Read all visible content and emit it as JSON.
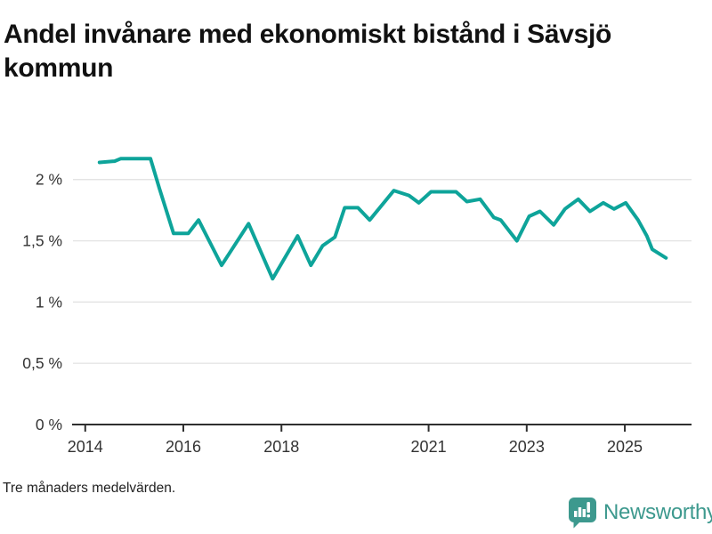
{
  "title": "Andel invånare med ekonomiskt bistånd i Sävsjö kommun",
  "footnote": "Tre månaders medelvärden.",
  "branding": {
    "name": "Newsworthy",
    "icon": "newsworthy-speech-bubble-chart-icon",
    "color": "#3d998e"
  },
  "colors": {
    "line": "#0ea49a",
    "grid": "#e4e4e4",
    "axis": "#2f2f2f",
    "tick_text": "#333333",
    "title_text": "#111111",
    "background": "#ffffff"
  },
  "chart_data": {
    "type": "line",
    "title": "Andel invånare med ekonomiskt bistånd i Sävsjö kommun",
    "subtitle": "Tre månaders medelvärden.",
    "xlabel": "",
    "ylabel": "",
    "unit": "%",
    "decimal_separator": ",",
    "grid": "horizontal",
    "legend": "none",
    "xlim": [
      2013.75,
      2026.36
    ],
    "ylim": [
      0,
      2.267
    ],
    "x_ticks": [
      {
        "value": 2014,
        "label": "2014"
      },
      {
        "value": 2016,
        "label": "2016"
      },
      {
        "value": 2018,
        "label": "2018"
      },
      {
        "value": 2021,
        "label": "2021"
      },
      {
        "value": 2023,
        "label": "2023"
      },
      {
        "value": 2025,
        "label": "2025"
      }
    ],
    "y_ticks": [
      {
        "value": 0,
        "label": "0 %"
      },
      {
        "value": 0.5,
        "label": "0,5 %"
      },
      {
        "value": 1,
        "label": "1 %"
      },
      {
        "value": 1.5,
        "label": "1,5 %"
      },
      {
        "value": 2,
        "label": "2 %"
      }
    ],
    "series": [
      {
        "name": "Sävsjö kommun",
        "color": "#0ea49a",
        "points": [
          [
            2014.29,
            2.14
          ],
          [
            2014.6,
            2.15
          ],
          [
            2014.72,
            2.17
          ],
          [
            2015.33,
            2.17
          ],
          [
            2015.51,
            1.93
          ],
          [
            2015.8,
            1.56
          ],
          [
            2016.1,
            1.56
          ],
          [
            2016.31,
            1.67
          ],
          [
            2016.78,
            1.3
          ],
          [
            2017.33,
            1.64
          ],
          [
            2017.82,
            1.19
          ],
          [
            2018.33,
            1.54
          ],
          [
            2018.6,
            1.3
          ],
          [
            2018.84,
            1.46
          ],
          [
            2019.09,
            1.53
          ],
          [
            2019.29,
            1.77
          ],
          [
            2019.56,
            1.77
          ],
          [
            2019.8,
            1.67
          ],
          [
            2020.29,
            1.91
          ],
          [
            2020.6,
            1.87
          ],
          [
            2020.8,
            1.81
          ],
          [
            2021.05,
            1.9
          ],
          [
            2021.56,
            1.9
          ],
          [
            2021.78,
            1.82
          ],
          [
            2022.05,
            1.84
          ],
          [
            2022.33,
            1.69
          ],
          [
            2022.47,
            1.67
          ],
          [
            2022.8,
            1.5
          ],
          [
            2023.05,
            1.7
          ],
          [
            2023.27,
            1.74
          ],
          [
            2023.55,
            1.63
          ],
          [
            2023.78,
            1.76
          ],
          [
            2024.05,
            1.84
          ],
          [
            2024.29,
            1.74
          ],
          [
            2024.56,
            1.81
          ],
          [
            2024.78,
            1.76
          ],
          [
            2025.02,
            1.81
          ],
          [
            2025.27,
            1.67
          ],
          [
            2025.45,
            1.54
          ],
          [
            2025.56,
            1.43
          ],
          [
            2025.84,
            1.36
          ]
        ]
      }
    ]
  }
}
